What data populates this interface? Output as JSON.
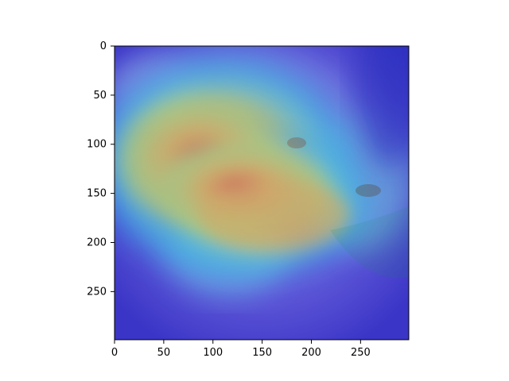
{
  "chart_data": {
    "type": "heatmap",
    "title": "",
    "xlabel": "",
    "ylabel": "",
    "xlim": [
      0,
      299
    ],
    "ylim": [
      299,
      0
    ],
    "x_ticks": [
      0,
      50,
      100,
      150,
      200,
      250
    ],
    "y_ticks": [
      0,
      50,
      100,
      150,
      200,
      250
    ],
    "x_tick_labels": [
      "0",
      "50",
      "100",
      "150",
      "200",
      "250"
    ],
    "y_tick_labels": [
      "0",
      "50",
      "100",
      "150",
      "200",
      "250"
    ],
    "grid": false,
    "colormap": "jet",
    "hotspots": [
      {
        "x": 120,
        "y": 135,
        "value": 1.0
      },
      {
        "x": 175,
        "y": 170,
        "value": 0.85
      },
      {
        "x": 200,
        "y": 205,
        "value": 0.6
      },
      {
        "x": 80,
        "y": 170,
        "value": 0.55
      }
    ]
  },
  "colors": {
    "background": "#ffffff",
    "axis": "#000000",
    "image_base": "#5b5fd6"
  }
}
